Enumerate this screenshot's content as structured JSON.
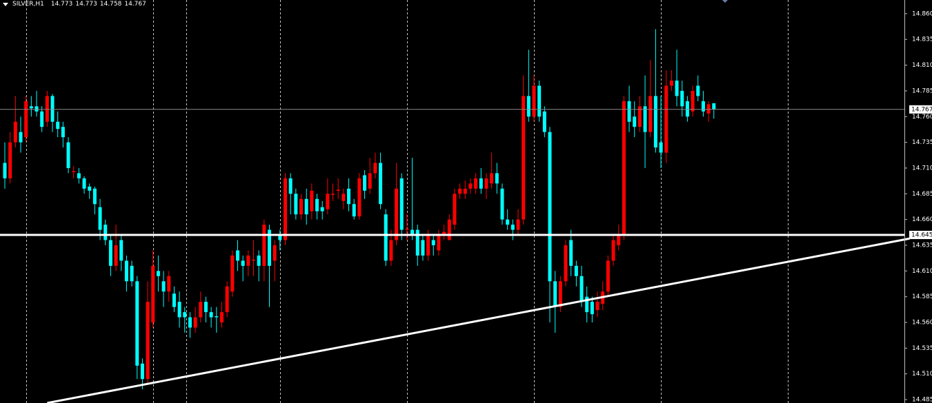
{
  "chart_data": {
    "type": "candlestick",
    "header": {
      "symbol": "SILVER,H1",
      "open": 14.773,
      "high": 14.773,
      "low": 14.758,
      "close": 14.767
    },
    "up_color": "#ff0000",
    "down_color": "#00ffff",
    "open": [
      14.715,
      14.7,
      14.735,
      14.745,
      14.74,
      14.77,
      14.77,
      14.765,
      14.755,
      14.78,
      14.755,
      14.75,
      14.735,
      14.706,
      14.705,
      14.7,
      14.692,
      14.69,
      14.672,
      14.655,
      14.64,
      14.615,
      14.64,
      14.62,
      14.615,
      14.6,
      14.52,
      14.505,
      14.56,
      14.61,
      14.6,
      14.59,
      14.588,
      14.58,
      14.57,
      14.565,
      14.555,
      14.565,
      14.58,
      14.57,
      14.566,
      14.56,
      14.57,
      14.59,
      14.63,
      14.62,
      14.615,
      14.62,
      14.625,
      14.615,
      14.65,
      14.62,
      14.645,
      14.64,
      14.7,
      14.685,
      14.665,
      14.68,
      14.668,
      14.68,
      14.672,
      14.67,
      14.684,
      14.688,
      14.678,
      14.69,
      14.675,
      14.663,
      14.703,
      14.69,
      14.705,
      14.715,
      14.665,
      14.62,
      14.64,
      14.7,
      14.65,
      14.65,
      14.65,
      14.64,
      14.625,
      14.64,
      14.63,
      14.645,
      14.64,
      14.655,
      14.685,
      14.685,
      14.69,
      14.69,
      14.7,
      14.69,
      14.695,
      14.705,
      14.69,
      14.66,
      14.655,
      14.65,
      14.66,
      14.78,
      14.76,
      14.79,
      14.765,
      14.745,
      14.6,
      14.575,
      14.6,
      14.64,
      14.615,
      14.605,
      14.585,
      14.58,
      14.572,
      14.578,
      14.59,
      14.62,
      14.635,
      14.645,
      14.775,
      14.76,
      14.75,
      14.77,
      14.745,
      14.78,
      14.735,
      14.725,
      14.79,
      14.795,
      14.785,
      14.775,
      14.765,
      14.79,
      14.775,
      14.763,
      14.773
    ],
    "high": [
      14.735,
      14.745,
      14.78,
      14.76,
      14.78,
      14.78,
      14.785,
      14.77,
      14.785,
      14.782,
      14.765,
      14.755,
      14.74,
      14.712,
      14.71,
      14.702,
      14.695,
      14.692,
      14.68,
      14.66,
      14.645,
      14.655,
      14.645,
      14.625,
      14.62,
      14.605,
      14.525,
      14.6,
      14.63,
      14.625,
      14.61,
      14.61,
      14.595,
      14.59,
      14.575,
      14.57,
      14.575,
      14.59,
      14.585,
      14.575,
      14.575,
      14.58,
      14.6,
      14.63,
      14.64,
      14.625,
      14.63,
      14.64,
      14.63,
      14.66,
      14.655,
      14.64,
      14.65,
      14.705,
      14.705,
      14.69,
      14.685,
      14.69,
      14.695,
      14.685,
      14.678,
      14.7,
      14.695,
      14.7,
      14.69,
      14.7,
      14.68,
      14.705,
      14.708,
      14.72,
      14.725,
      14.725,
      14.67,
      14.65,
      14.715,
      14.705,
      14.665,
      14.72,
      14.655,
      14.645,
      14.65,
      14.645,
      14.65,
      14.655,
      14.665,
      14.69,
      14.695,
      14.698,
      14.7,
      14.705,
      14.71,
      14.705,
      14.725,
      14.715,
      14.695,
      14.67,
      14.66,
      14.67,
      14.8,
      14.825,
      14.8,
      14.795,
      14.77,
      14.75,
      14.61,
      14.605,
      14.64,
      14.65,
      14.62,
      14.615,
      14.595,
      14.585,
      14.59,
      14.6,
      14.625,
      14.645,
      14.655,
      14.78,
      14.79,
      14.775,
      14.78,
      14.8,
      14.815,
      14.845,
      14.78,
      14.805,
      14.805,
      14.825,
      14.795,
      14.78,
      14.79,
      14.8,
      14.785,
      14.775,
      14.773
    ],
    "low": [
      14.69,
      14.695,
      14.73,
      14.725,
      14.735,
      14.76,
      14.76,
      14.745,
      14.75,
      14.745,
      14.74,
      14.73,
      14.705,
      14.7,
      14.695,
      14.685,
      14.68,
      14.665,
      14.64,
      14.635,
      14.605,
      14.61,
      14.61,
      14.59,
      14.595,
      14.505,
      14.495,
      14.5,
      14.555,
      14.59,
      14.575,
      14.58,
      14.57,
      14.555,
      14.55,
      14.545,
      14.55,
      14.56,
      14.56,
      14.555,
      14.55,
      14.555,
      14.565,
      14.585,
      14.61,
      14.6,
      14.605,
      14.605,
      14.6,
      14.6,
      14.575,
      14.6,
      14.63,
      14.635,
      14.665,
      14.66,
      14.66,
      14.655,
      14.66,
      14.66,
      14.66,
      14.665,
      14.678,
      14.68,
      14.67,
      14.668,
      14.66,
      14.66,
      14.68,
      14.685,
      14.7,
      14.67,
      14.615,
      14.615,
      14.635,
      14.64,
      14.64,
      14.64,
      14.615,
      14.62,
      14.62,
      14.625,
      14.625,
      14.64,
      14.64,
      14.65,
      14.68,
      14.68,
      14.685,
      14.685,
      14.685,
      14.68,
      14.69,
      14.685,
      14.655,
      14.65,
      14.64,
      14.645,
      14.655,
      14.755,
      14.755,
      14.755,
      14.74,
      14.56,
      14.55,
      14.57,
      14.595,
      14.605,
      14.595,
      14.575,
      14.56,
      14.56,
      14.565,
      14.572,
      14.585,
      14.615,
      14.63,
      14.64,
      14.745,
      14.74,
      14.745,
      14.71,
      14.74,
      14.725,
      14.71,
      14.715,
      14.785,
      14.77,
      14.76,
      14.755,
      14.76,
      14.775,
      14.76,
      14.755,
      14.758
    ],
    "close": [
      14.7,
      14.735,
      14.755,
      14.735,
      14.775,
      14.768,
      14.765,
      14.75,
      14.78,
      14.755,
      14.748,
      14.74,
      14.71,
      14.707,
      14.7,
      14.69,
      14.688,
      14.675,
      14.65,
      14.64,
      14.615,
      14.635,
      14.62,
      14.6,
      14.6,
      14.518,
      14.505,
      14.58,
      14.615,
      14.605,
      14.59,
      14.605,
      14.575,
      14.565,
      14.565,
      14.555,
      14.565,
      14.58,
      14.57,
      14.565,
      14.565,
      14.57,
      14.595,
      14.625,
      14.62,
      14.615,
      14.625,
      14.621,
      14.615,
      14.655,
      14.615,
      14.635,
      14.64,
      14.7,
      14.685,
      14.665,
      14.68,
      14.665,
      14.688,
      14.668,
      14.668,
      14.685,
      14.685,
      14.689,
      14.685,
      14.675,
      14.663,
      14.7,
      14.688,
      14.705,
      14.715,
      14.675,
      14.62,
      14.64,
      14.69,
      14.65,
      14.651,
      14.645,
      14.625,
      14.625,
      14.645,
      14.635,
      14.645,
      14.648,
      14.66,
      14.685,
      14.69,
      14.69,
      14.695,
      14.7,
      14.69,
      14.7,
      14.705,
      14.695,
      14.66,
      14.655,
      14.65,
      14.66,
      14.78,
      14.76,
      14.79,
      14.76,
      14.745,
      14.6,
      14.575,
      14.6,
      14.635,
      14.615,
      14.605,
      14.58,
      14.57,
      14.568,
      14.58,
      14.59,
      14.62,
      14.64,
      14.645,
      14.775,
      14.755,
      14.75,
      14.77,
      14.745,
      14.78,
      14.73,
      14.725,
      14.79,
      14.795,
      14.78,
      14.77,
      14.76,
      14.785,
      14.78,
      14.765,
      14.772,
      14.767
    ],
    "ylim": [
      14.4817,
      14.8733
    ],
    "yticks": [
      {
        "value": 14.86,
        "label": "14.860"
      },
      14.835,
      {
        "value": 14.81,
        "label": "14.810"
      },
      14.785,
      {
        "value": 14.76,
        "label": "14.760"
      },
      14.735,
      {
        "value": 14.71,
        "label": "14.710"
      },
      14.685,
      {
        "value": 14.66,
        "label": "14.660"
      },
      14.635,
      {
        "value": 14.61,
        "label": "14.610"
      },
      14.585,
      {
        "value": 14.56,
        "label": "14.560"
      },
      14.535,
      {
        "value": 14.51,
        "label": "14.510"
      },
      14.485
    ],
    "price_lines": [
      {
        "value": 14.645,
        "color": "#ffffff",
        "width": 3
      },
      {
        "value": 14.767,
        "color": "#8c8c8c",
        "width": 1
      }
    ],
    "trendline": {
      "points": [
        [
          8,
          14.4817
        ],
        [
          171,
          14.6415
        ]
      ],
      "color": "#ffffff",
      "width": 3
    }
  }
}
